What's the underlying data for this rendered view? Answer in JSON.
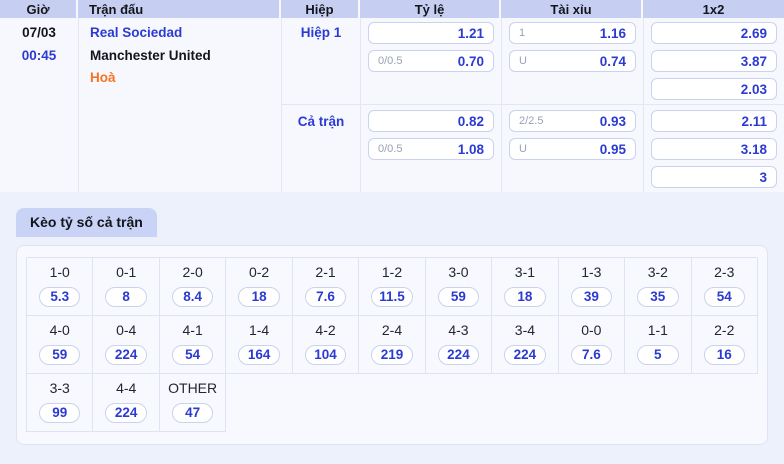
{
  "colors": {
    "page_bg": "#edf1fb",
    "header_bg": "#c6cff2",
    "tab_bg": "#c9d3f6",
    "odds_blue": "#2b3bd2",
    "result_orange": "#f9731f",
    "label_gray": "#98a0b5"
  },
  "odds_table": {
    "columns": {
      "time": "Giờ",
      "match": "Trận đấu",
      "half": "Hiệp",
      "rate": "Tỷ lệ",
      "over_under": "Tài xỉu",
      "one_x_two": "1x2"
    },
    "row": {
      "date": "07/03",
      "time": "00:45",
      "home": "Real Sociedad",
      "away": "Manchester United",
      "result": "Hoà",
      "sections": [
        {
          "label": "Hiệp 1",
          "rate": [
            {
              "line": "",
              "value": "1.21"
            },
            {
              "line": "0/0.5",
              "value": "0.70"
            }
          ],
          "over_under": [
            {
              "line": "1",
              "value": "1.16"
            },
            {
              "line": "U",
              "value": "0.74"
            }
          ],
          "one_x_two": [
            "2.69",
            "3.87",
            "2.03"
          ]
        },
        {
          "label": "Cả trận",
          "rate": [
            {
              "line": "",
              "value": "0.82"
            },
            {
              "line": "0/0.5",
              "value": "1.08"
            }
          ],
          "over_under": [
            {
              "line": "2/2.5",
              "value": "0.93"
            },
            {
              "line": "U",
              "value": "0.95"
            }
          ],
          "one_x_two": [
            "2.11",
            "3.18",
            "3"
          ]
        }
      ]
    }
  },
  "scores": {
    "tab_label": "Kèo tỷ số cả trận",
    "rows": [
      {
        "cells": [
          {
            "score": "1-0",
            "odds": "5.3"
          },
          {
            "score": "0-1",
            "odds": "8"
          },
          {
            "score": "2-0",
            "odds": "8.4"
          },
          {
            "score": "0-2",
            "odds": "18"
          },
          {
            "score": "2-1",
            "odds": "7.6"
          },
          {
            "score": "1-2",
            "odds": "11.5"
          },
          {
            "score": "3-0",
            "odds": "59"
          },
          {
            "score": "3-1",
            "odds": "18"
          },
          {
            "score": "1-3",
            "odds": "39"
          },
          {
            "score": "3-2",
            "odds": "35"
          },
          {
            "score": "2-3",
            "odds": "54"
          }
        ]
      },
      {
        "cells": [
          {
            "score": "4-0",
            "odds": "59"
          },
          {
            "score": "0-4",
            "odds": "224"
          },
          {
            "score": "4-1",
            "odds": "54"
          },
          {
            "score": "1-4",
            "odds": "164"
          },
          {
            "score": "4-2",
            "odds": "104"
          },
          {
            "score": "2-4",
            "odds": "219"
          },
          {
            "score": "4-3",
            "odds": "224"
          },
          {
            "score": "3-4",
            "odds": "224"
          },
          {
            "score": "0-0",
            "odds": "7.6"
          },
          {
            "score": "1-1",
            "odds": "5"
          },
          {
            "score": "2-2",
            "odds": "16"
          }
        ]
      },
      {
        "cells": [
          {
            "score": "3-3",
            "odds": "99"
          },
          {
            "score": "4-4",
            "odds": "224"
          },
          {
            "score": "OTHER",
            "odds": "47"
          }
        ]
      }
    ]
  }
}
